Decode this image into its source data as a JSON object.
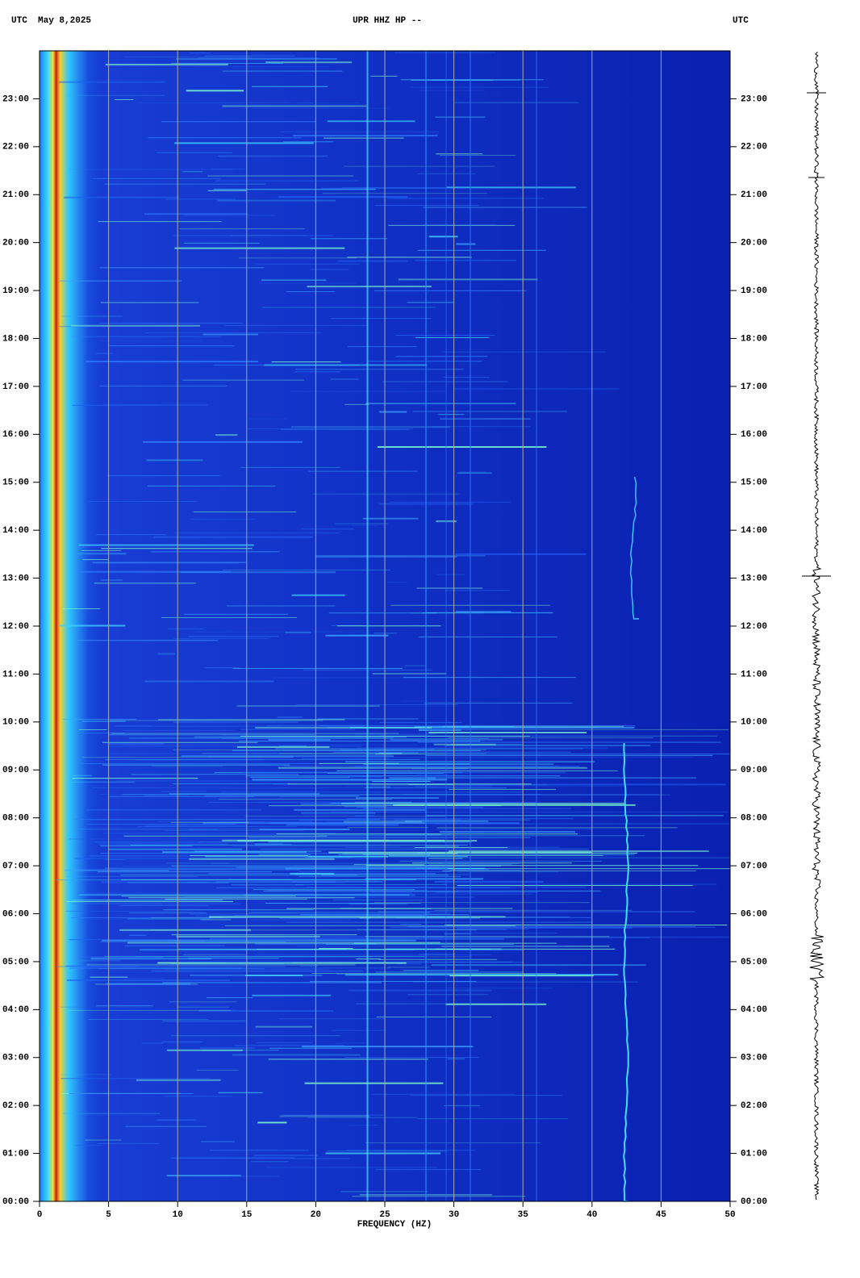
{
  "chart_data": {
    "type": "spectrogram",
    "title_left": "UTC  May 8,2025",
    "title": "UPR HHZ HP --",
    "title_right": "UTC",
    "xlabel": "FREQUENCY (HZ)",
    "xlim": [
      0,
      50
    ],
    "xticks": [
      0,
      5,
      10,
      15,
      20,
      25,
      30,
      35,
      40,
      45,
      50
    ],
    "ylim": [
      0,
      24
    ],
    "yticks": [
      {
        "value": 0,
        "label": "00:00"
      },
      {
        "value": 1,
        "label": "01:00"
      },
      {
        "value": 2,
        "label": "02:00"
      },
      {
        "value": 3,
        "label": "03:00"
      },
      {
        "value": 4,
        "label": "04:00"
      },
      {
        "value": 5,
        "label": "05:00"
      },
      {
        "value": 6,
        "label": "06:00"
      },
      {
        "value": 7,
        "label": "07:00"
      },
      {
        "value": 8,
        "label": "08:00"
      },
      {
        "value": 9,
        "label": "09:00"
      },
      {
        "value": 10,
        "label": "10:00"
      },
      {
        "value": 11,
        "label": "11:00"
      },
      {
        "value": 12,
        "label": "12:00"
      },
      {
        "value": 13,
        "label": "13:00"
      },
      {
        "value": 14,
        "label": "14:00"
      },
      {
        "value": 15,
        "label": "15:00"
      },
      {
        "value": 16,
        "label": "16:00"
      },
      {
        "value": 17,
        "label": "17:00"
      },
      {
        "value": 18,
        "label": "18:00"
      },
      {
        "value": 19,
        "label": "19:00"
      },
      {
        "value": 20,
        "label": "20:00"
      },
      {
        "value": 21,
        "label": "21:00"
      },
      {
        "value": 22,
        "label": "22:00"
      },
      {
        "value": 23,
        "label": "23:00"
      }
    ],
    "grid": true
  }
}
